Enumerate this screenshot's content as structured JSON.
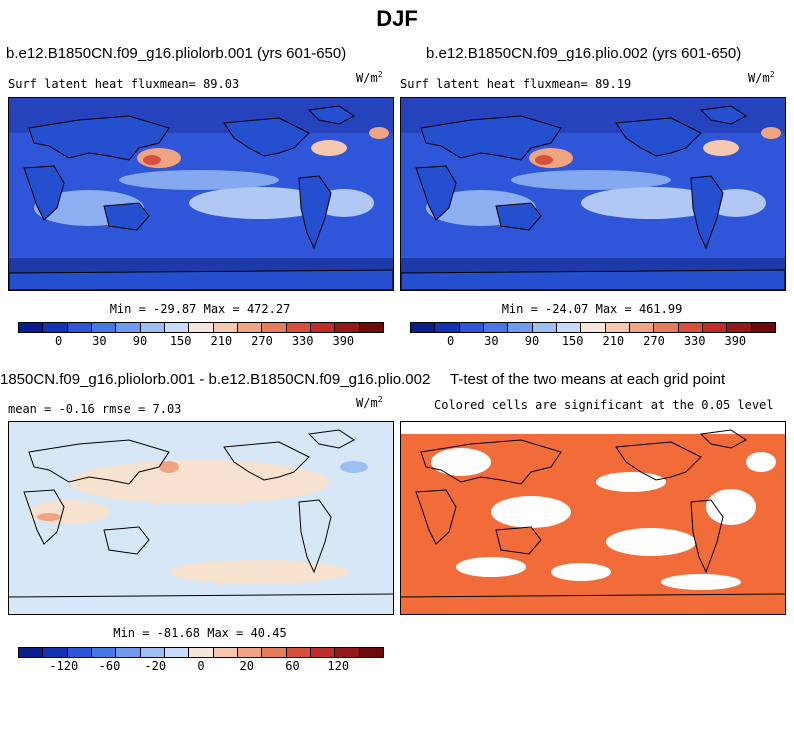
{
  "title": "DJF",
  "units_text": "W/m",
  "units_power": "2",
  "colors": {
    "ocean_full": "#2f56d8",
    "ocean_diff": "#d7e7f7",
    "land_diff": "#f7e1cf",
    "significant": "#f26c3a",
    "coast": "#000000"
  },
  "panels": {
    "p1": {
      "title": "b.e12.B1850CN.f09_g16.pliolorb.001 (yrs 601-650)",
      "left_label": "Surf latent heat fluxmean=  89.03",
      "minmax": "Min = -29.87 Max = 472.27"
    },
    "p2": {
      "title": "b.e12.B1850CN.f09_g16.plio.002 (yrs 601-650)",
      "left_label": "Surf latent heat fluxmean=  89.19",
      "minmax": "Min = -24.07 Max = 461.99"
    },
    "p3": {
      "title": "1850CN.f09_g16.pliolorb.001 - b.e12.B1850CN.f09_g16.plio.002",
      "left_label": "mean =  -0.16    rmse =   7.03",
      "minmax": "Min = -81.68 Max =  40.45"
    },
    "p4": {
      "title": "T-test of the two means at each grid point",
      "left_label": "Colored cells are significant at the 0.05 level"
    }
  },
  "chart_data": [
    {
      "type": "heatmap",
      "title": "b.e12.B1850CN.f09_g16.pliolorb.001 (yrs 601-650)",
      "variable": "Surf latent heat flux",
      "mean": 89.03,
      "min": -29.87,
      "max": 472.27,
      "units": "W/m2",
      "colorbar_ticks": [
        "0",
        "30",
        "90",
        "150",
        "210",
        "270",
        "330",
        "390"
      ],
      "colorbar_colors": [
        "#0a1e8c",
        "#1432b4",
        "#2d55d7",
        "#4678e6",
        "#6e9bf0",
        "#9bbef5",
        "#c8dcfa",
        "#f5e6dc",
        "#f5c8af",
        "#f0a582",
        "#e67d5a",
        "#d7503c",
        "#be2d28",
        "#961919",
        "#6e0a0a"
      ]
    },
    {
      "type": "heatmap",
      "title": "b.e12.B1850CN.f09_g16.plio.002 (yrs 601-650)",
      "variable": "Surf latent heat flux",
      "mean": 89.19,
      "min": -24.07,
      "max": 461.99,
      "units": "W/m2",
      "colorbar_ticks": [
        "0",
        "30",
        "90",
        "150",
        "210",
        "270",
        "330",
        "390"
      ],
      "colorbar_colors": [
        "#0a1e8c",
        "#1432b4",
        "#2d55d7",
        "#4678e6",
        "#6e9bf0",
        "#9bbef5",
        "#c8dcfa",
        "#f5e6dc",
        "#f5c8af",
        "#f0a582",
        "#e67d5a",
        "#d7503c",
        "#be2d28",
        "#961919",
        "#6e0a0a"
      ]
    },
    {
      "type": "heatmap",
      "title": "1850CN.f09_g16.pliolorb.001 - b.e12.B1850CN.f09_g16.plio.002",
      "mean": -0.16,
      "rmse": 7.03,
      "min": -81.68,
      "max": 40.45,
      "units": "W/m2",
      "colorbar_ticks": [
        "-120",
        "-60",
        "-20",
        "0",
        "20",
        "60",
        "120"
      ],
      "colorbar_colors": [
        "#0a1e8c",
        "#1432b4",
        "#2d55d7",
        "#4678e6",
        "#6e9bf0",
        "#9bbef5",
        "#c8dcfa",
        "#f5e6dc",
        "#f5c8af",
        "#f0a582",
        "#e67d5a",
        "#d7503c",
        "#be2d28",
        "#961919",
        "#6e0a0a"
      ]
    },
    {
      "type": "heatmap",
      "title": "T-test of the two means at each grid point",
      "description_label": "Colored cells are significant at the 0.05 level",
      "significance_level": 0.05
    }
  ]
}
